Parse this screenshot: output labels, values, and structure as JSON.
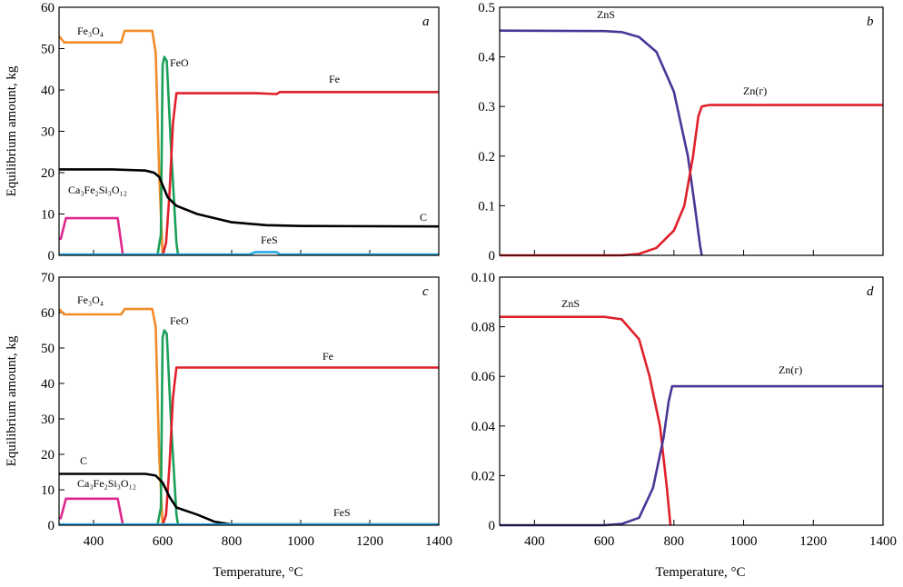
{
  "chart_data": [
    {
      "type": "line",
      "title": "a",
      "ylabel": "Equilibrium amount, kg",
      "xlim": [
        300,
        1400
      ],
      "xticks": [
        400,
        600,
        800,
        1000,
        1200,
        1400
      ],
      "ylim": [
        0,
        60
      ],
      "yticks": [
        0,
        10,
        20,
        30,
        40,
        50,
        60
      ],
      "series": [
        {
          "name": "Fe₃O₄",
          "color": "#f28c28",
          "x": [
            300,
            315,
            480,
            490,
            570,
            580,
            590,
            600
          ],
          "values": [
            53,
            51.5,
            51.5,
            54.3,
            54.3,
            49,
            20,
            0
          ]
        },
        {
          "name": "FeO",
          "color": "#1aa05a",
          "x": [
            585,
            595,
            600,
            605,
            612,
            625,
            640,
            645
          ],
          "values": [
            0,
            5,
            46,
            48,
            47,
            25,
            3,
            0
          ]
        },
        {
          "name": "Fe",
          "color": "#e0202a",
          "x": [
            600,
            610,
            620,
            630,
            640,
            870,
            930,
            940,
            1400
          ],
          "values": [
            0,
            3,
            15,
            32,
            39.2,
            39.2,
            39,
            39.5,
            39.5
          ]
        },
        {
          "name": "C",
          "color": "#000000",
          "x": [
            300,
            450,
            550,
            575,
            590,
            600,
            615,
            640,
            700,
            800,
            900,
            1000,
            1400
          ],
          "values": [
            20.8,
            20.8,
            20.5,
            20,
            19,
            17,
            14,
            12,
            10,
            8,
            7.3,
            7.1,
            7
          ]
        },
        {
          "name": "Ca₃Fe₂Si₃O₁₂",
          "color": "#e0288c",
          "x": [
            300,
            305,
            320,
            470,
            485
          ],
          "values": [
            4,
            4,
            9,
            9,
            0
          ]
        },
        {
          "name": "FeS",
          "color": "#29a8e0",
          "x": [
            300,
            850,
            870,
            930,
            940,
            1400
          ],
          "values": [
            0.2,
            0.2,
            0.8,
            0.8,
            0.2,
            0.2
          ]
        }
      ]
    },
    {
      "type": "line",
      "title": "b",
      "xlim": [
        300,
        1400
      ],
      "xticks": [
        400,
        600,
        800,
        1000,
        1200,
        1400
      ],
      "ylim": [
        0,
        0.5
      ],
      "yticks": [
        0,
        0.1,
        0.2,
        0.3,
        0.4,
        0.5
      ],
      "series": [
        {
          "name": "ZnS",
          "color": "#4b3596",
          "x": [
            300,
            600,
            650,
            700,
            750,
            800,
            840,
            860,
            875,
            880
          ],
          "values": [
            0.453,
            0.452,
            0.45,
            0.44,
            0.41,
            0.33,
            0.2,
            0.1,
            0.02,
            0
          ]
        },
        {
          "name": "Zn(г)",
          "color": "#e0202a",
          "x": [
            300,
            650,
            700,
            750,
            800,
            830,
            855,
            870,
            880,
            900,
            1400
          ],
          "values": [
            0,
            0,
            0.003,
            0.015,
            0.05,
            0.1,
            0.2,
            0.28,
            0.3,
            0.303,
            0.303
          ]
        }
      ]
    },
    {
      "type": "line",
      "title": "c",
      "ylabel": "Equilibrium amount, kg",
      "xlabel": "Temperature, °C",
      "xlim": [
        300,
        1400
      ],
      "xticks": [
        400,
        600,
        800,
        1000,
        1200,
        1400
      ],
      "ylim": [
        0,
        70
      ],
      "yticks": [
        0,
        10,
        20,
        30,
        40,
        50,
        60,
        70
      ],
      "series": [
        {
          "name": "Fe₃O₄",
          "color": "#f28c28",
          "x": [
            300,
            315,
            480,
            490,
            570,
            580,
            590,
            600
          ],
          "values": [
            61,
            59.5,
            59.5,
            61,
            61,
            56,
            20,
            0
          ]
        },
        {
          "name": "FeO",
          "color": "#1aa05a",
          "x": [
            585,
            595,
            600,
            605,
            612,
            625,
            640,
            645
          ],
          "values": [
            0,
            5,
            53,
            55,
            54,
            28,
            3,
            0
          ]
        },
        {
          "name": "Fe",
          "color": "#e0202a",
          "x": [
            600,
            610,
            620,
            630,
            640,
            1400
          ],
          "values": [
            0,
            3,
            17,
            36,
            44.5,
            44.5
          ]
        },
        {
          "name": "C",
          "color": "#000000",
          "x": [
            300,
            550,
            580,
            600,
            620,
            640,
            700,
            750,
            800,
            1400
          ],
          "values": [
            14.5,
            14.5,
            14,
            12,
            8,
            5,
            3,
            1,
            0.2,
            0.2
          ]
        },
        {
          "name": "Ca₃Fe₂Si₃O₁₂",
          "color": "#e0288c",
          "x": [
            300,
            305,
            320,
            470,
            485
          ],
          "values": [
            2,
            2,
            7.5,
            7.5,
            0
          ]
        },
        {
          "name": "FeS",
          "color": "#29a8e0",
          "x": [
            300,
            1400
          ],
          "values": [
            0.2,
            0.2
          ]
        }
      ]
    },
    {
      "type": "line",
      "title": "d",
      "xlabel": "Temperature, °C",
      "xlim": [
        300,
        1400
      ],
      "xticks": [
        400,
        600,
        800,
        1000,
        1200,
        1400
      ],
      "ylim": [
        0,
        0.1
      ],
      "yticks": [
        0,
        0.02,
        0.04,
        0.06,
        0.08,
        {
          "value": 0.1,
          "label": "0.10"
        }
      ],
      "series": [
        {
          "name": "ZnS",
          "color": "#e0202a",
          "x": [
            300,
            600,
            650,
            700,
            730,
            760,
            780,
            790
          ],
          "values": [
            0.084,
            0.084,
            0.083,
            0.075,
            0.06,
            0.04,
            0.015,
            0
          ]
        },
        {
          "name": "Zn(г)",
          "color": "#4b3596",
          "x": [
            300,
            600,
            650,
            700,
            740,
            770,
            785,
            795,
            1400
          ],
          "values": [
            0,
            0,
            0.0005,
            0.003,
            0.015,
            0.035,
            0.05,
            0.056,
            0.056
          ]
        }
      ]
    }
  ]
}
